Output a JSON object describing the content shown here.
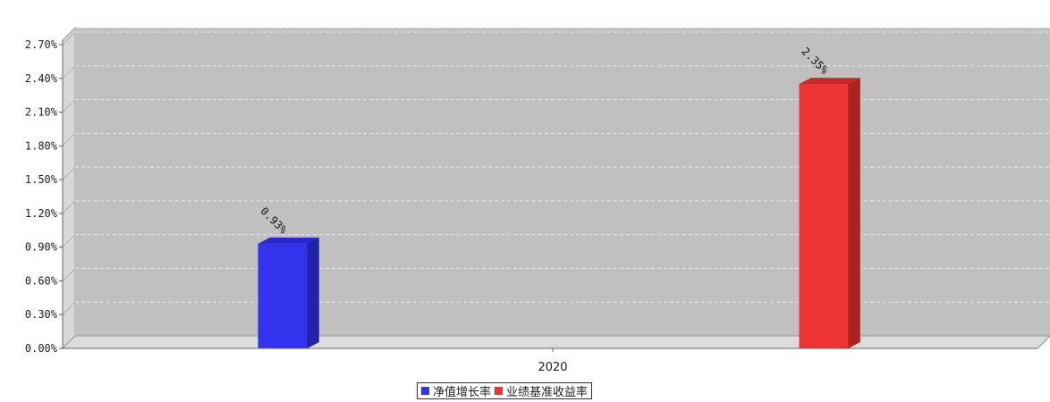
{
  "chart_data": {
    "type": "bar",
    "categories": [
      "2020"
    ],
    "series": [
      {
        "name": "净值增长率",
        "values": [
          0.93
        ],
        "label": "0.93%",
        "color": "#3333ee"
      },
      {
        "name": "业绩基准收益率",
        "values": [
          2.35
        ],
        "label": "2.35%",
        "color": "#ee3333"
      }
    ],
    "y_ticks": [
      "0.00%",
      "0.30%",
      "0.60%",
      "0.90%",
      "1.20%",
      "1.50%",
      "1.80%",
      "2.10%",
      "2.40%",
      "2.70%"
    ],
    "ylim": [
      0,
      2.85
    ],
    "grid": true,
    "legend_position": "bottom-center"
  }
}
